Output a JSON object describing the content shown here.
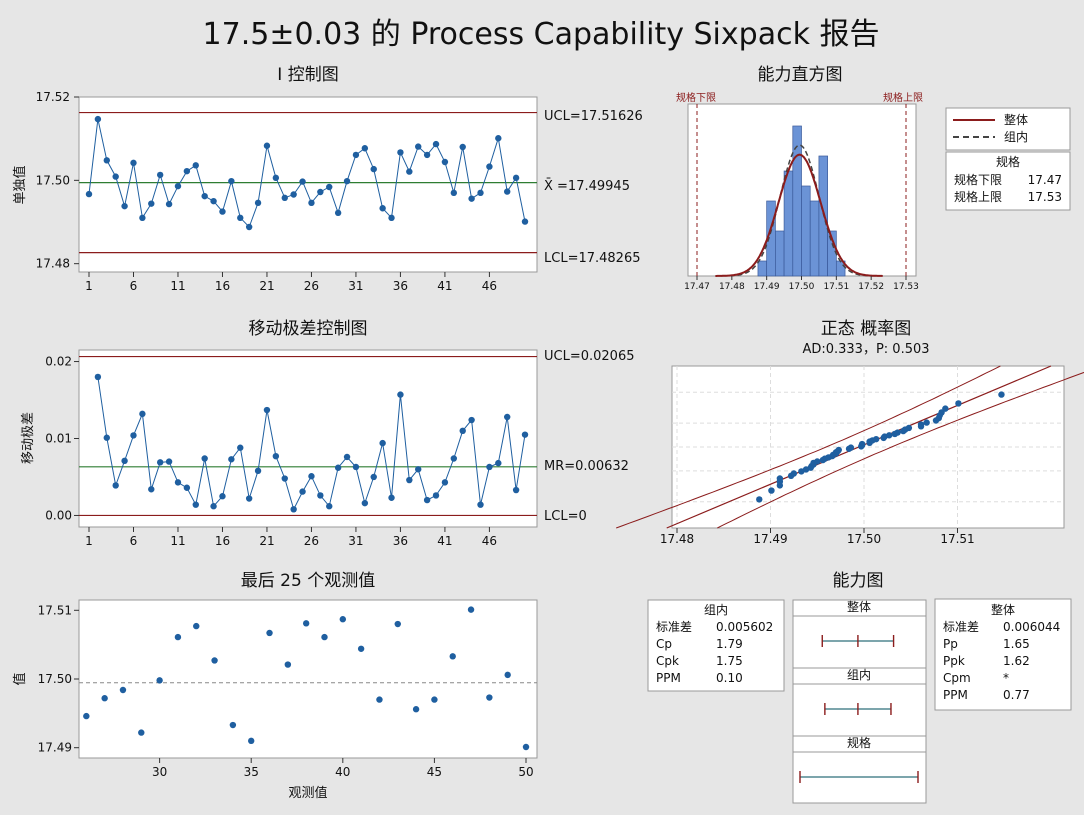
{
  "title": "17.5±0.03 的 Process Capability Sixpack 报告",
  "colors": {
    "background": "#e6e6e6",
    "panel": "#ffffff",
    "point": "#1f5fa0",
    "limit_line": "#8b1c1c",
    "center_line": "#2e7d32",
    "hist_bar": "#6b93d6",
    "ref_gray": "#888888"
  },
  "i_chart": {
    "title": "I 控制图",
    "ylabel": "单独值",
    "ucl_label": "UCL=17.51626",
    "center_label": "X̄ =17.49945",
    "lcl_label": "LCL=17.48265",
    "ucl": 17.51626,
    "center": 17.49945,
    "lcl": 17.48265,
    "y_ticks": [
      "17.48",
      "17.50",
      "17.52"
    ],
    "x_ticks": [
      "1",
      "6",
      "11",
      "16",
      "21",
      "26",
      "31",
      "36",
      "41",
      "46"
    ]
  },
  "mr_chart": {
    "title": "移动极差控制图",
    "ylabel": "移动极差",
    "ucl_label": "UCL=0.02065",
    "center_label": "MR=0.00632",
    "lcl_label": "LCL=0",
    "ucl": 0.02065,
    "center": 0.00632,
    "lcl": 0,
    "y_ticks": [
      "0.00",
      "0.01",
      "0.02"
    ],
    "x_ticks": [
      "1",
      "6",
      "11",
      "16",
      "21",
      "26",
      "31",
      "36",
      "41",
      "46"
    ]
  },
  "last25": {
    "title": "最后 25 个观测值",
    "ylabel": "值",
    "xlabel": "观测值",
    "y_ticks": [
      "17.49",
      "17.50",
      "17.51"
    ],
    "x_ticks": [
      "30",
      "35",
      "40",
      "45",
      "50"
    ]
  },
  "histogram": {
    "title": "能力直方图",
    "lsl_label": "规格下限",
    "usl_label": "规格上限",
    "x_ticks": [
      "17.47",
      "17.48",
      "17.49",
      "17.50",
      "17.51",
      "17.52",
      "17.53"
    ],
    "legend": {
      "overall": "整体",
      "within": "组内"
    },
    "spec_box": {
      "title": "规格",
      "rows": [
        {
          "label": "规格下限",
          "value": "17.47"
        },
        {
          "label": "规格上限",
          "value": "17.53"
        }
      ]
    }
  },
  "normal_plot": {
    "title": "正态 概率图",
    "subtitle": "AD:0.333，P: 0.503",
    "x_ticks": [
      "17.48",
      "17.49",
      "17.50",
      "17.51"
    ]
  },
  "capability": {
    "title": "能力图",
    "within_table": {
      "title": "组内",
      "rows": [
        {
          "label": "标准差",
          "value": "0.005602"
        },
        {
          "label": "Cp",
          "value": "1.79"
        },
        {
          "label": "Cpk",
          "value": "1.75"
        },
        {
          "label": "PPM",
          "value": "0.10"
        }
      ]
    },
    "overall_table": {
      "title": "整体",
      "rows": [
        {
          "label": "标准差",
          "value": "0.006044"
        },
        {
          "label": "Pp",
          "value": "1.65"
        },
        {
          "label": "Ppk",
          "value": "1.62"
        },
        {
          "label": "Cpm",
          "value": "*"
        },
        {
          "label": "PPM",
          "value": "0.77"
        }
      ]
    },
    "interval_labels": {
      "overall": "整体",
      "within": "组内",
      "spec": "规格"
    }
  },
  "chart_data": [
    {
      "type": "line",
      "name": "I 控制图",
      "x": [
        1,
        2,
        3,
        4,
        5,
        6,
        7,
        8,
        9,
        10,
        11,
        12,
        13,
        14,
        15,
        16,
        17,
        18,
        19,
        20,
        21,
        22,
        23,
        24,
        25,
        26,
        27,
        28,
        29,
        30,
        31,
        32,
        33,
        34,
        35,
        36,
        37,
        38,
        39,
        40,
        41,
        42,
        43,
        44,
        45,
        46,
        47,
        48,
        49,
        50
      ],
      "values": [
        17.4967,
        17.5147,
        17.5048,
        17.5009,
        17.4938,
        17.5042,
        17.491,
        17.4944,
        17.5013,
        17.4943,
        17.4986,
        17.5022,
        17.5036,
        17.4962,
        17.495,
        17.4925,
        17.4998,
        17.491,
        17.4888,
        17.4946,
        17.5083,
        17.5006,
        17.4958,
        17.4966,
        17.4997,
        17.4946,
        17.4972,
        17.4984,
        17.4922,
        17.4998,
        17.5061,
        17.5077,
        17.5027,
        17.4933,
        17.491,
        17.5067,
        17.5021,
        17.5081,
        17.5061,
        17.5087,
        17.5044,
        17.497,
        17.508,
        17.4956,
        17.497,
        17.5033,
        17.5101,
        17.4973,
        17.5006,
        17.4901
      ],
      "ucl": 17.51626,
      "center": 17.49945,
      "lcl": 17.48265,
      "ylim": [
        17.478,
        17.52
      ]
    },
    {
      "type": "line",
      "name": "移动极差控制图",
      "x": [
        2,
        3,
        4,
        5,
        6,
        7,
        8,
        9,
        10,
        11,
        12,
        13,
        14,
        15,
        16,
        17,
        18,
        19,
        20,
        21,
        22,
        23,
        24,
        25,
        26,
        27,
        28,
        29,
        30,
        31,
        32,
        33,
        34,
        35,
        36,
        37,
        38,
        39,
        40,
        41,
        42,
        43,
        44,
        45,
        46,
        47,
        48,
        49,
        50
      ],
      "values": [
        0.018,
        0.0101,
        0.0039,
        0.0071,
        0.0104,
        0.0132,
        0.0034,
        0.0069,
        0.007,
        0.0043,
        0.0036,
        0.0014,
        0.0074,
        0.0012,
        0.0025,
        0.0073,
        0.0088,
        0.0022,
        0.0058,
        0.0137,
        0.0077,
        0.0048,
        0.0008,
        0.0031,
        0.0051,
        0.0026,
        0.0012,
        0.0062,
        0.0076,
        0.0063,
        0.0016,
        0.005,
        0.0094,
        0.0023,
        0.0157,
        0.0046,
        0.006,
        0.002,
        0.0026,
        0.0043,
        0.0074,
        0.011,
        0.0124,
        0.0014,
        0.0063,
        0.0068,
        0.0128,
        0.0033,
        0.0105
      ],
      "ucl": 0.02065,
      "center": 0.00632,
      "lcl": 0,
      "ylim": [
        -0.0015,
        0.0215
      ]
    },
    {
      "type": "scatter",
      "name": "最后 25 个观测值",
      "x": [
        26,
        27,
        28,
        29,
        30,
        31,
        32,
        33,
        34,
        35,
        36,
        37,
        38,
        39,
        40,
        41,
        42,
        43,
        44,
        45,
        46,
        47,
        48,
        49,
        50
      ],
      "values": [
        17.4946,
        17.4972,
        17.4984,
        17.4922,
        17.4998,
        17.5061,
        17.5077,
        17.5027,
        17.4933,
        17.491,
        17.5067,
        17.5021,
        17.5081,
        17.5061,
        17.5087,
        17.5044,
        17.497,
        17.508,
        17.4956,
        17.497,
        17.5033,
        17.5101,
        17.4973,
        17.5006,
        17.4901
      ],
      "reference": 17.49945,
      "xlim": [
        25.6,
        50.6
      ],
      "ylim": [
        17.4885,
        17.5115
      ]
    },
    {
      "type": "bar",
      "name": "能力直方图",
      "bin_edges": [
        17.4875,
        17.49,
        17.4925,
        17.495,
        17.4975,
        17.5,
        17.5025,
        17.505,
        17.5075,
        17.51,
        17.5125
      ],
      "counts": [
        1,
        5,
        3,
        7,
        10,
        6,
        5,
        8,
        3,
        1
      ],
      "lsl": 17.47,
      "usl": 17.53,
      "mean": 17.49945,
      "sd_overall": 0.006044,
      "sd_within": 0.005602,
      "xlim": [
        17.47,
        17.53
      ]
    },
    {
      "type": "scatter",
      "name": "正态 概率图",
      "xlim": [
        17.48,
        17.52
      ],
      "mean": 17.49945,
      "sd": 0.006044
    }
  ]
}
